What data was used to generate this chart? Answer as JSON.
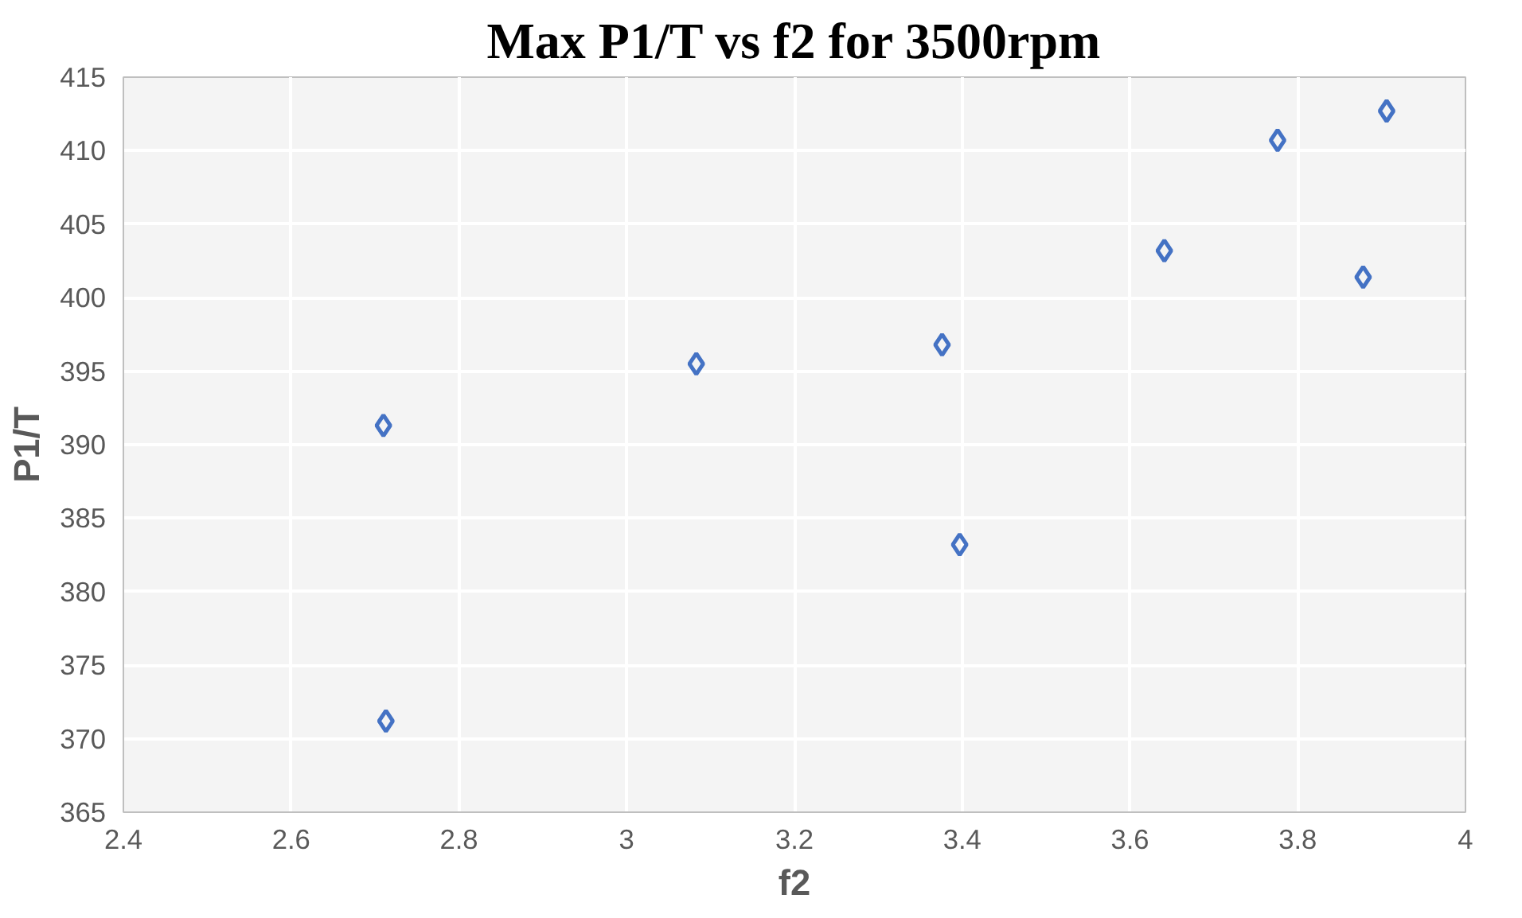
{
  "chart_data": {
    "type": "scatter",
    "title": "Max P1/T vs f2 for 3500rpm",
    "xlabel": "f2",
    "ylabel": "P1/T",
    "x": [
      2.71,
      2.713,
      3.083,
      3.376,
      3.397,
      3.641,
      3.776,
      3.878,
      3.906
    ],
    "series": [
      {
        "color": "#4472c4",
        "values": [
          391.3,
          371.2,
          395.5,
          396.8,
          383.2,
          403.2,
          410.7,
          401.4,
          412.7
        ]
      }
    ],
    "xlim": [
      2.4,
      4
    ],
    "xticks": [
      2.4,
      2.6,
      2.8,
      3,
      3.2,
      3.4,
      3.6,
      3.8,
      4
    ],
    "ylim": [
      365,
      415
    ],
    "yticks": [
      365,
      370,
      375,
      380,
      385,
      390,
      395,
      400,
      405,
      410,
      415
    ],
    "grid": true,
    "marker": "diamond"
  }
}
